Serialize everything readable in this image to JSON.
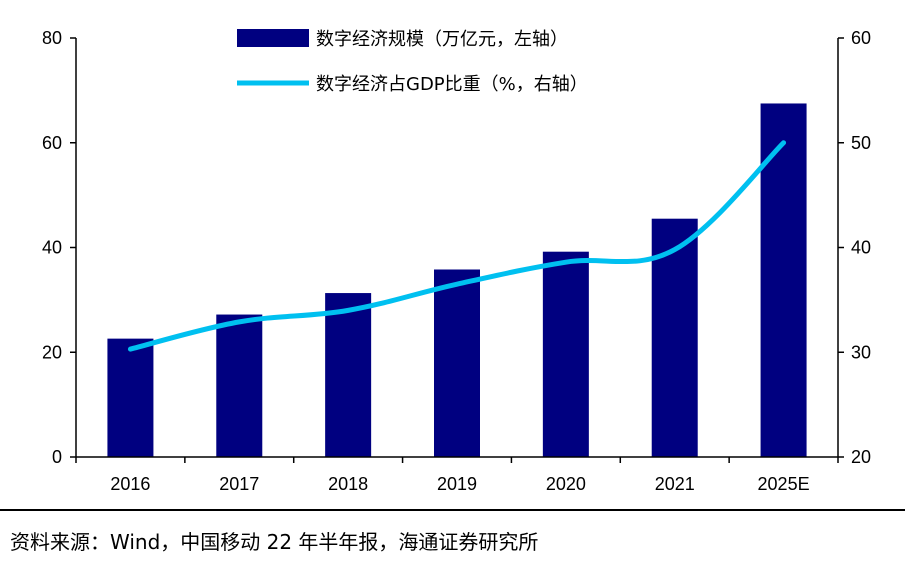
{
  "chart_data": {
    "type": "bar",
    "categories": [
      "2016",
      "2017",
      "2018",
      "2019",
      "2020",
      "2021",
      "2025E"
    ],
    "series": [
      {
        "name": "数字经济规模（万亿元，左轴）",
        "type": "bar",
        "axis": "left",
        "color": "#000080",
        "values": [
          22.6,
          27.2,
          31.3,
          35.8,
          39.2,
          45.5,
          67.5
        ]
      },
      {
        "name": "数字经济占GDP比重（%，右轴）",
        "type": "line",
        "axis": "right",
        "color": "#00C0F0",
        "values": [
          30.3,
          32.9,
          34.0,
          36.5,
          38.6,
          39.8,
          50.0
        ]
      }
    ],
    "y_left": {
      "min": 0,
      "max": 80,
      "ticks": [
        0,
        20,
        40,
        60,
        80
      ]
    },
    "y_right": {
      "min": 20,
      "max": 60,
      "ticks": [
        20,
        30,
        40,
        50,
        60
      ]
    },
    "legend_position": "top-center",
    "grid": false
  },
  "source_text": "资料来源：Wind，中国移动 22 年半年报，海通证券研究所"
}
